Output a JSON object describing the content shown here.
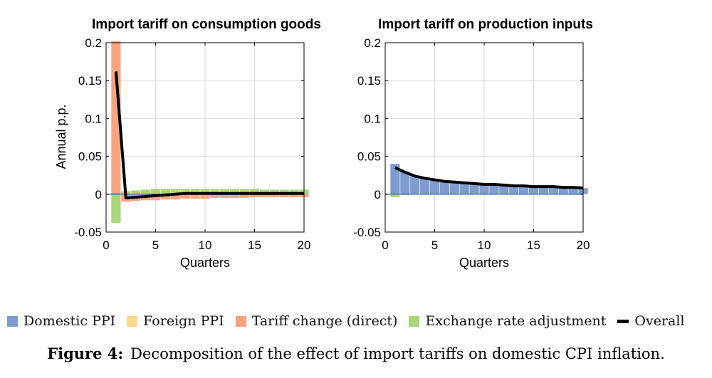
{
  "legend": {
    "domestic_ppi": "Domestic PPI",
    "foreign_ppi": "Foreign PPI",
    "tariff_direct": "Tariff change (direct)",
    "exchange_rate": "Exchange rate adjustment",
    "overall": "Overall"
  },
  "caption": {
    "label": "Figure 4:",
    "text": "Decomposition of the effect of import tariffs on domestic CPI inflation."
  },
  "colors": {
    "domestic_ppi": "#7e9ccf",
    "foreign_ppi": "#fcd98a",
    "tariff_direct": "#f9a47f",
    "exchange_rate": "#a9d67a",
    "overall": "#000000"
  },
  "chart_data": [
    {
      "type": "bar",
      "stacked": true,
      "title": "Import tariff on consumption goods",
      "xlabel": "Quarters",
      "ylabel": "Annual p.p.",
      "xlim": [
        0,
        20
      ],
      "ylim": [
        -0.05,
        0.2
      ],
      "xticks": [
        0,
        5,
        10,
        15,
        20
      ],
      "yticks": [
        -0.05,
        0,
        0.05,
        0.1,
        0.15,
        0.2
      ],
      "ytick_labels": [
        "-0.05",
        "0",
        "0.05",
        "0.1",
        "0.15",
        "0.2"
      ],
      "grid": true,
      "x": [
        1,
        2,
        3,
        4,
        5,
        6,
        7,
        8,
        9,
        10,
        11,
        12,
        13,
        14,
        15,
        16,
        17,
        18,
        19,
        20
      ],
      "series": [
        {
          "name": "Domestic PPI",
          "values": [
            0.002,
            0.001,
            0.001,
            0.001,
            0.001,
            0.001,
            0.001,
            0.001,
            0.001,
            0.001,
            0.001,
            0.001,
            0.001,
            0.001,
            0.001,
            0.001,
            0.001,
            0.001,
            0.001,
            0.001
          ]
        },
        {
          "name": "Foreign PPI",
          "values": [
            0,
            0,
            0,
            0,
            0,
            0,
            0,
            0,
            0,
            0,
            0,
            0,
            0,
            0,
            0,
            0,
            0,
            0,
            0,
            0
          ]
        },
        {
          "name": "Tariff change (direct)",
          "values": [
            0.2,
            -0.01,
            -0.009,
            -0.008,
            -0.008,
            -0.007,
            -0.007,
            -0.006,
            -0.006,
            -0.006,
            -0.005,
            -0.005,
            -0.005,
            -0.005,
            -0.004,
            -0.004,
            -0.004,
            -0.004,
            -0.004,
            -0.004
          ]
        },
        {
          "name": "Exchange rate adjustment",
          "values": [
            -0.038,
            0.003,
            0.004,
            0.005,
            0.006,
            0.006,
            0.006,
            0.006,
            0.006,
            0.006,
            0.006,
            0.006,
            0.006,
            0.006,
            0.006,
            0.005,
            0.005,
            0.005,
            0.005,
            0.005
          ]
        }
      ],
      "overall": [
        0.162,
        -0.005,
        -0.004,
        -0.003,
        -0.002,
        -0.001,
        0,
        0.001,
        0.001,
        0.001,
        0.001,
        0.001,
        0.001,
        0.001,
        0.001,
        0.001,
        0.001,
        0.001,
        0.001,
        0.001
      ]
    },
    {
      "type": "bar",
      "stacked": true,
      "title": "Import tariff on production inputs",
      "xlabel": "Quarters",
      "ylabel": "",
      "xlim": [
        0,
        20
      ],
      "ylim": [
        -0.05,
        0.2
      ],
      "xticks": [
        0,
        5,
        10,
        15,
        20
      ],
      "yticks": [
        -0.05,
        0,
        0.05,
        0.1,
        0.15,
        0.2
      ],
      "ytick_labels": [
        "-0.05",
        "0",
        "0.05",
        "0.1",
        "0.15",
        "0.2"
      ],
      "grid": true,
      "x": [
        1,
        2,
        3,
        4,
        5,
        6,
        7,
        8,
        9,
        10,
        11,
        12,
        13,
        14,
        15,
        16,
        17,
        18,
        19,
        20
      ],
      "series": [
        {
          "name": "Domestic PPI",
          "values": [
            0.04,
            0.03,
            0.024,
            0.021,
            0.019,
            0.017,
            0.016,
            0.015,
            0.014,
            0.013,
            0.013,
            0.012,
            0.011,
            0.011,
            0.01,
            0.01,
            0.01,
            0.009,
            0.009,
            0.008
          ]
        },
        {
          "name": "Foreign PPI",
          "values": [
            0,
            0,
            0,
            0,
            0,
            0,
            0,
            0,
            0,
            0,
            0,
            0,
            0,
            0,
            0,
            0,
            0,
            0,
            0,
            0
          ]
        },
        {
          "name": "Tariff change (direct)",
          "values": [
            0,
            0,
            0,
            0,
            0,
            0,
            0,
            0,
            0,
            0,
            0,
            0,
            0,
            0,
            0,
            0,
            0,
            0,
            0,
            0
          ]
        },
        {
          "name": "Exchange rate adjustment",
          "values": [
            -0.004,
            -0.001,
            0,
            0,
            0,
            0,
            0,
            0,
            0,
            0,
            0,
            0,
            0,
            0,
            0,
            0,
            0,
            0,
            0,
            0
          ]
        }
      ],
      "overall": [
        0.035,
        0.029,
        0.024,
        0.021,
        0.019,
        0.017,
        0.016,
        0.015,
        0.014,
        0.013,
        0.013,
        0.012,
        0.011,
        0.011,
        0.01,
        0.01,
        0.01,
        0.009,
        0.009,
        0.008
      ]
    }
  ]
}
